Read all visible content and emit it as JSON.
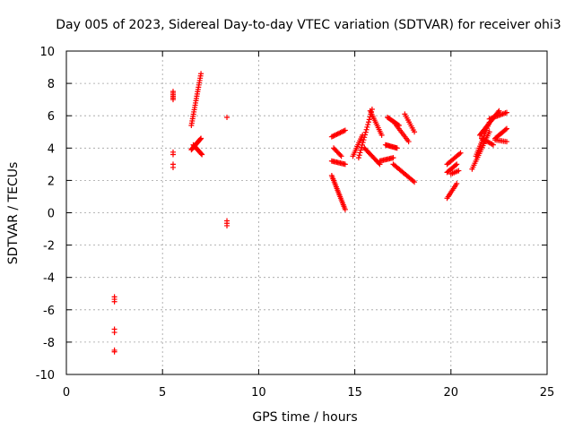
{
  "chart_data": {
    "type": "scatter",
    "title": "Day 005 of 2023, Sidereal Day-to-day VTEC variation (SDTVAR) for receiver ohi3",
    "xlabel": "GPS time / hours",
    "ylabel": "SDTVAR / TECUs",
    "xlim": [
      0,
      25
    ],
    "ylim": [
      -10,
      10
    ],
    "xticks": [
      0,
      5,
      10,
      15,
      20,
      25
    ],
    "yticks": [
      -10,
      -8,
      -6,
      -4,
      -2,
      0,
      2,
      4,
      6,
      8,
      10
    ],
    "grid": true,
    "marker": "+",
    "color": "#ff0000",
    "segments": [
      {
        "x0": 2.5,
        "y0": -5.2,
        "x1": 2.5,
        "y1": -5.5,
        "n": 3
      },
      {
        "x0": 2.5,
        "y0": -7.2,
        "x1": 2.5,
        "y1": -7.4,
        "n": 2
      },
      {
        "x0": 2.5,
        "y0": -8.5,
        "x1": 2.5,
        "y1": -8.6,
        "n": 2
      },
      {
        "x0": 5.55,
        "y0": 7.0,
        "x1": 5.55,
        "y1": 7.5,
        "n": 6
      },
      {
        "x0": 5.55,
        "y0": 3.6,
        "x1": 5.55,
        "y1": 3.75,
        "n": 2
      },
      {
        "x0": 5.55,
        "y0": 2.8,
        "x1": 5.55,
        "y1": 3.0,
        "n": 2
      },
      {
        "x0": 6.5,
        "y0": 5.4,
        "x1": 7.0,
        "y1": 8.6,
        "n": 24
      },
      {
        "x0": 6.5,
        "y0": 3.9,
        "x1": 7.0,
        "y1": 4.6,
        "n": 18
      },
      {
        "x0": 6.6,
        "y0": 4.2,
        "x1": 7.05,
        "y1": 3.6,
        "n": 14
      },
      {
        "x0": 8.35,
        "y0": 5.9,
        "x1": 8.35,
        "y1": 5.95,
        "n": 1
      },
      {
        "x0": 8.35,
        "y0": -0.5,
        "x1": 8.35,
        "y1": -0.8,
        "n": 3
      },
      {
        "x0": 13.8,
        "y0": 2.3,
        "x1": 14.5,
        "y1": 0.2,
        "n": 22
      },
      {
        "x0": 13.8,
        "y0": 4.7,
        "x1": 14.5,
        "y1": 5.1,
        "n": 12
      },
      {
        "x0": 13.8,
        "y0": 3.2,
        "x1": 14.5,
        "y1": 3.0,
        "n": 12
      },
      {
        "x0": 13.9,
        "y0": 4.0,
        "x1": 14.3,
        "y1": 3.5,
        "n": 8
      },
      {
        "x0": 14.9,
        "y0": 3.5,
        "x1": 15.4,
        "y1": 4.8,
        "n": 12
      },
      {
        "x0": 15.2,
        "y0": 3.4,
        "x1": 15.9,
        "y1": 6.4,
        "n": 20
      },
      {
        "x0": 15.5,
        "y0": 4.0,
        "x1": 16.3,
        "y1": 3.0,
        "n": 16
      },
      {
        "x0": 15.8,
        "y0": 6.3,
        "x1": 16.4,
        "y1": 4.8,
        "n": 14
      },
      {
        "x0": 16.3,
        "y0": 3.2,
        "x1": 17.0,
        "y1": 3.4,
        "n": 12
      },
      {
        "x0": 16.6,
        "y0": 4.2,
        "x1": 17.2,
        "y1": 4.0,
        "n": 12
      },
      {
        "x0": 16.7,
        "y0": 5.9,
        "x1": 17.3,
        "y1": 5.4,
        "n": 12
      },
      {
        "x0": 17.0,
        "y0": 3.0,
        "x1": 18.1,
        "y1": 1.9,
        "n": 18
      },
      {
        "x0": 17.1,
        "y0": 5.5,
        "x1": 17.8,
        "y1": 4.4,
        "n": 12
      },
      {
        "x0": 17.6,
        "y0": 6.1,
        "x1": 18.1,
        "y1": 5.0,
        "n": 10
      },
      {
        "x0": 19.8,
        "y0": 0.9,
        "x1": 20.3,
        "y1": 1.8,
        "n": 10
      },
      {
        "x0": 19.8,
        "y0": 2.5,
        "x1": 20.3,
        "y1": 3.0,
        "n": 10
      },
      {
        "x0": 19.8,
        "y0": 3.0,
        "x1": 20.5,
        "y1": 3.7,
        "n": 12
      },
      {
        "x0": 20.0,
        "y0": 2.4,
        "x1": 20.4,
        "y1": 2.6,
        "n": 6
      },
      {
        "x0": 21.1,
        "y0": 2.7,
        "x1": 22.0,
        "y1": 5.0,
        "n": 20
      },
      {
        "x0": 21.3,
        "y0": 3.5,
        "x1": 22.0,
        "y1": 5.6,
        "n": 18
      },
      {
        "x0": 21.5,
        "y0": 4.8,
        "x1": 22.5,
        "y1": 6.3,
        "n": 22
      },
      {
        "x0": 22.0,
        "y0": 5.8,
        "x1": 22.9,
        "y1": 6.2,
        "n": 14
      },
      {
        "x0": 21.6,
        "y0": 4.6,
        "x1": 22.2,
        "y1": 4.2,
        "n": 10
      },
      {
        "x0": 22.3,
        "y0": 4.6,
        "x1": 22.9,
        "y1": 5.2,
        "n": 12
      },
      {
        "x0": 22.3,
        "y0": 4.5,
        "x1": 22.9,
        "y1": 4.4,
        "n": 8
      }
    ]
  }
}
